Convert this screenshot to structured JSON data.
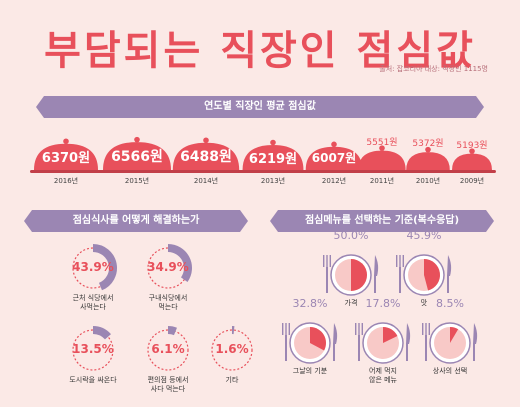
{
  "title": "부담되는 직장인 점심값",
  "source": "출처: 잡코리아 대상: 직장인 1115명",
  "colors": {
    "coral": "#e8505b",
    "purple": "#9b86b3",
    "bg": "#fbe9e6",
    "ring_bg": "#f6d8d4",
    "pie_bg": "#f8c9c7"
  },
  "section1": {
    "title": "연도별 직장인 평균 점심값"
  },
  "section2": {
    "title": "점심식사를 어떻게 해결하는가"
  },
  "section3": {
    "title": "점심메뉴를 선택하는 기준(복수응답)"
  },
  "chart_data": [
    {
      "type": "bar",
      "title": "연도별 직장인 평균 점심값",
      "categories": [
        "2016년",
        "2015년",
        "2014년",
        "2013년",
        "2012년",
        "2011년",
        "2010년",
        "2009년"
      ],
      "value_labels": [
        "6370원",
        "6566원",
        "6488원",
        "6219원",
        "6007원",
        "5551원",
        "5372원",
        "5193원"
      ],
      "values": [
        6370,
        6566,
        6488,
        6219,
        6007,
        5551,
        5372,
        5193
      ],
      "unit": "원"
    },
    {
      "type": "pie",
      "title": "점심식사를 어떻게 해결하는가",
      "categories": [
        "근처 식당에서 사먹는다",
        "구내식당에서 먹는다",
        "도시락을 싸온다",
        "편의점 등에서 사다 먹는다",
        "기타"
      ],
      "label_lines": [
        [
          "근처 식당에서",
          "사먹는다"
        ],
        [
          "구내식당에서",
          "먹는다"
        ],
        [
          "도시락을 싸온다"
        ],
        [
          "편의점 등에서",
          "사다 먹는다"
        ],
        [
          "기타"
        ]
      ],
      "value_labels": [
        "43.9%",
        "34.9%",
        "13.5%",
        "6.1%",
        "1.6%"
      ],
      "values": [
        43.9,
        34.9,
        13.5,
        6.1,
        1.6
      ]
    },
    {
      "type": "pie",
      "title": "점심메뉴를 선택하는 기준(복수응답)",
      "categories": [
        "가격",
        "맛",
        "그날의 기분",
        "어제 먹지 않은 메뉴",
        "상사의 선택"
      ],
      "label_lines": [
        [
          "가격"
        ],
        [
          "맛"
        ],
        [
          "그날의 기분"
        ],
        [
          "어제 먹지",
          "않은 메뉴"
        ],
        [
          "상사의 선택"
        ]
      ],
      "value_labels": [
        "50.0%",
        "45.9%",
        "32.8%",
        "17.8%",
        "8.5%"
      ],
      "values": [
        50.0,
        45.9,
        32.8,
        17.8,
        8.5
      ]
    }
  ]
}
